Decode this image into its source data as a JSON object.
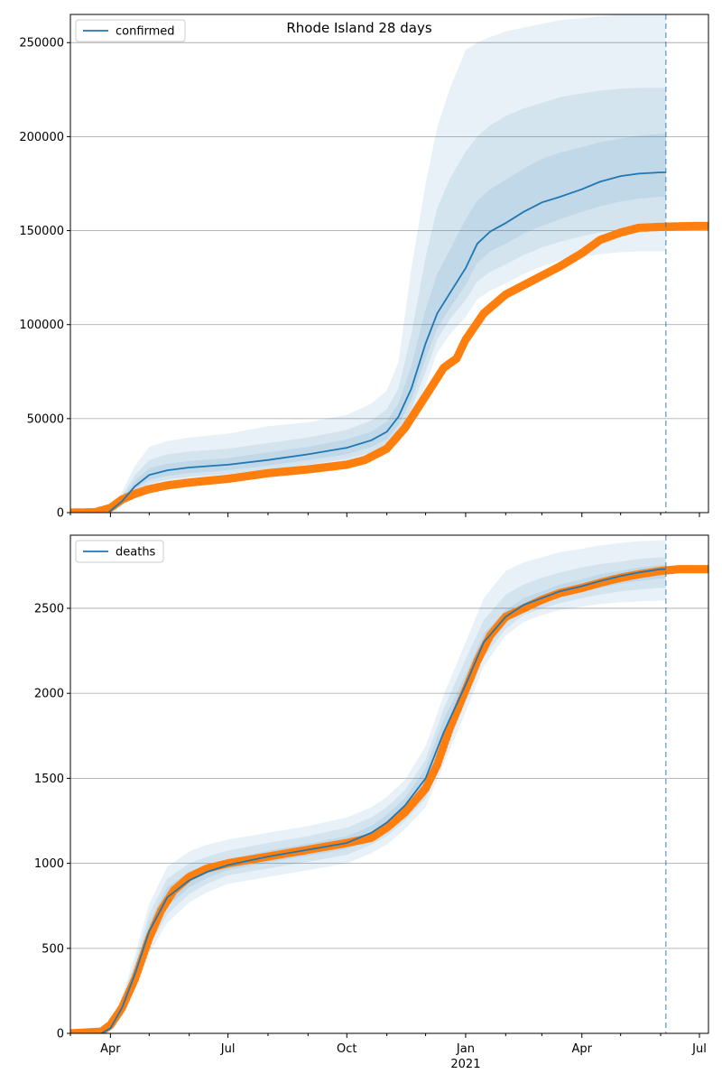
{
  "title": "Rhode Island 28 days",
  "colors": {
    "model": "#1f77b4",
    "observed": "#ff7f0e",
    "band": "#1f77b4",
    "grid": "#b0b0b0",
    "axis": "#000000"
  },
  "chart_data": [
    {
      "type": "line",
      "name": "confirmed-panel",
      "legend": "confirmed",
      "legend_position": "top-left",
      "grid": "horizontal",
      "ylim": [
        0,
        265000
      ],
      "yticks": [
        0,
        50000,
        100000,
        150000,
        200000,
        250000
      ],
      "ytick_labels": [
        "0",
        "50000",
        "100000",
        "150000",
        "200000",
        "250000"
      ],
      "forecast_line_x": "2021-06-05",
      "model": {
        "x": [
          "2020-03-31",
          "2020-04-10",
          "2020-04-20",
          "2020-05-01",
          "2020-05-15",
          "2020-06-01",
          "2020-07-01",
          "2020-08-01",
          "2020-09-01",
          "2020-10-01",
          "2020-10-20",
          "2020-11-01",
          "2020-11-10",
          "2020-11-20",
          "2020-12-01",
          "2020-12-10",
          "2020-12-20",
          "2021-01-01",
          "2021-01-10",
          "2021-01-20",
          "2021-02-01",
          "2021-02-15",
          "2021-03-01",
          "2021-03-15",
          "2021-04-01",
          "2021-04-15",
          "2021-05-01",
          "2021-05-15",
          "2021-06-01",
          "2021-06-05"
        ],
        "y": [
          500,
          6000,
          14000,
          20000,
          22500,
          24000,
          25500,
          28000,
          31000,
          34500,
          38500,
          43000,
          51000,
          66000,
          90000,
          106000,
          117000,
          130000,
          143000,
          149500,
          154000,
          160000,
          165000,
          168000,
          172000,
          176000,
          179000,
          180300,
          181000,
          181000
        ]
      },
      "bands": [
        {
          "level": "outer",
          "lower": [
            0,
            4000,
            9500,
            13000,
            15000,
            16500,
            18000,
            20500,
            23000,
            26000,
            29500,
            33000,
            40000,
            50000,
            68000,
            85000,
            95000,
            104000,
            113500,
            118000,
            122000,
            127000,
            131000,
            134000,
            136000,
            137500,
            138500,
            139000,
            139000,
            139000
          ],
          "upper": [
            0,
            11000,
            25000,
            35000,
            38000,
            40000,
            42000,
            46000,
            48000,
            52000,
            58000,
            65000,
            80000,
            130000,
            175000,
            205000,
            226000,
            246000,
            250000,
            253000,
            256000,
            258000,
            260000,
            262000,
            263000,
            264000,
            265000,
            265000,
            265000,
            265000
          ]
        },
        {
          "level": "middle",
          "lower": [
            0,
            4500,
            11000,
            15500,
            17500,
            19000,
            20500,
            23000,
            25500,
            28500,
            32000,
            36000,
            43000,
            55000,
            75000,
            92000,
            103000,
            113000,
            123000,
            128000,
            132000,
            137000,
            141000,
            144000,
            147000,
            149000,
            150500,
            151500,
            152000,
            152000
          ],
          "upper": [
            0,
            9000,
            20000,
            28000,
            31000,
            32500,
            34000,
            37000,
            40000,
            44000,
            49000,
            55000,
            66000,
            95000,
            136000,
            162000,
            178000,
            192000,
            200000,
            206000,
            211000,
            215000,
            218000,
            221000,
            223000,
            224500,
            225500,
            226000,
            226000,
            226000
          ]
        },
        {
          "level": "inner",
          "lower": [
            0,
            5200,
            12500,
            17500,
            19500,
            21000,
            22500,
            25000,
            28000,
            31000,
            35000,
            39000,
            46500,
            60000,
            82000,
            98000,
            109000,
            121000,
            133000,
            139000,
            143000,
            148500,
            152500,
            156000,
            160000,
            163000,
            165500,
            167000,
            168000,
            168000
          ],
          "upper": [
            0,
            7500,
            17000,
            23500,
            26000,
            27500,
            29000,
            32000,
            35000,
            39000,
            43000,
            48500,
            58000,
            78000,
            108000,
            127000,
            140000,
            156000,
            166000,
            172000,
            177000,
            183000,
            188000,
            191500,
            194500,
            197000,
            199000,
            200500,
            201500,
            201500
          ]
        }
      ],
      "observed": {
        "x": [
          "2020-03-01",
          "2020-03-20",
          "2020-04-01",
          "2020-04-10",
          "2020-04-20",
          "2020-05-01",
          "2020-05-15",
          "2020-06-01",
          "2020-07-01",
          "2020-08-01",
          "2020-09-01",
          "2020-10-01",
          "2020-10-15",
          "2020-11-01",
          "2020-11-15",
          "2020-12-01",
          "2020-12-15",
          "2020-12-25",
          "2021-01-01",
          "2021-01-15",
          "2021-02-01",
          "2021-02-15",
          "2021-03-01",
          "2021-03-15",
          "2021-04-01",
          "2021-04-15",
          "2021-05-01",
          "2021-05-15",
          "2021-06-01",
          "2021-06-15",
          "2021-07-01",
          "2021-07-08"
        ],
        "y": [
          0,
          200,
          2500,
          7000,
          10000,
          12500,
          14500,
          16000,
          18000,
          21000,
          23000,
          25500,
          28000,
          34000,
          45000,
          62000,
          77000,
          82000,
          92000,
          106000,
          116000,
          121000,
          126000,
          131000,
          138000,
          145000,
          149000,
          151500,
          152000,
          152300,
          152500,
          152500
        ]
      }
    },
    {
      "type": "line",
      "name": "deaths-panel",
      "legend": "deaths",
      "legend_position": "top-left",
      "grid": "horizontal",
      "ylim": [
        0,
        2930
      ],
      "yticks": [
        0,
        500,
        1000,
        1500,
        2000,
        2500
      ],
      "ytick_labels": [
        "0",
        "500",
        "1000",
        "1500",
        "2000",
        "2500"
      ],
      "xlim": [
        "2020-03-01",
        "2021-07-08"
      ],
      "xticks": [
        "2020-04-01",
        "2020-07-01",
        "2020-10-01",
        "2021-01-01",
        "2021-04-01",
        "2021-07-01"
      ],
      "xtick_labels": [
        "Apr",
        "Jul",
        "Oct",
        "Jan",
        "Apr",
        "Jul"
      ],
      "xtick_sublabel": {
        "at": "2021-01-01",
        "text": "2021"
      },
      "forecast_line_x": "2021-06-05",
      "model": {
        "x": [
          "2020-03-25",
          "2020-04-01",
          "2020-04-10",
          "2020-04-20",
          "2020-05-01",
          "2020-05-15",
          "2020-06-01",
          "2020-06-15",
          "2020-07-01",
          "2020-08-01",
          "2020-09-01",
          "2020-10-01",
          "2020-10-20",
          "2020-11-01",
          "2020-11-15",
          "2020-12-01",
          "2020-12-15",
          "2021-01-01",
          "2021-01-15",
          "2021-02-01",
          "2021-02-15",
          "2021-03-01",
          "2021-03-15",
          "2021-04-01",
          "2021-04-15",
          "2021-05-01",
          "2021-05-15",
          "2021-06-01",
          "2021-06-05"
        ],
        "y": [
          0,
          30,
          150,
          350,
          600,
          800,
          900,
          950,
          990,
          1040,
          1080,
          1120,
          1180,
          1240,
          1340,
          1500,
          1770,
          2050,
          2300,
          2450,
          2520,
          2560,
          2600,
          2630,
          2660,
          2690,
          2710,
          2730,
          2730
        ]
      },
      "bands": [
        {
          "level": "outer",
          "lower": [
            0,
            10,
            100,
            260,
            470,
            650,
            770,
            830,
            880,
            920,
            960,
            1000,
            1060,
            1110,
            1200,
            1330,
            1580,
            1890,
            2160,
            2340,
            2420,
            2460,
            2490,
            2510,
            2525,
            2535,
            2540,
            2545,
            2545
          ],
          "upper": [
            0,
            60,
            220,
            460,
            760,
            980,
            1070,
            1110,
            1140,
            1180,
            1220,
            1270,
            1330,
            1390,
            1490,
            1690,
            1990,
            2300,
            2560,
            2720,
            2770,
            2800,
            2830,
            2850,
            2870,
            2885,
            2895,
            2900,
            2900
          ]
        },
        {
          "level": "middle",
          "lower": [
            0,
            15,
            115,
            290,
            510,
            700,
            820,
            880,
            930,
            970,
            1010,
            1050,
            1110,
            1160,
            1250,
            1380,
            1640,
            1950,
            2210,
            2380,
            2460,
            2500,
            2530,
            2560,
            2580,
            2600,
            2610,
            2620,
            2620
          ],
          "upper": [
            0,
            50,
            195,
            420,
            700,
            910,
            1000,
            1040,
            1075,
            1120,
            1160,
            1210,
            1270,
            1330,
            1430,
            1610,
            1910,
            2200,
            2430,
            2580,
            2640,
            2680,
            2710,
            2740,
            2760,
            2775,
            2790,
            2800,
            2800
          ]
        },
        {
          "level": "inner",
          "lower": [
            0,
            20,
            130,
            315,
            550,
            745,
            860,
            915,
            960,
            1005,
            1045,
            1085,
            1145,
            1200,
            1295,
            1440,
            1700,
            2000,
            2255,
            2415,
            2490,
            2530,
            2565,
            2595,
            2620,
            2645,
            2660,
            2675,
            2675
          ],
          "upper": [
            0,
            40,
            170,
            385,
            650,
            860,
            950,
            990,
            1025,
            1075,
            1115,
            1160,
            1220,
            1285,
            1385,
            1560,
            1845,
            2110,
            2350,
            2490,
            2560,
            2600,
            2640,
            2670,
            2700,
            2720,
            2740,
            2755,
            2755
          ]
        }
      ],
      "observed": {
        "x": [
          "2020-03-01",
          "2020-03-25",
          "2020-04-01",
          "2020-04-10",
          "2020-04-20",
          "2020-05-01",
          "2020-05-10",
          "2020-05-20",
          "2020-06-01",
          "2020-06-15",
          "2020-07-01",
          "2020-08-01",
          "2020-09-01",
          "2020-10-01",
          "2020-10-20",
          "2020-11-01",
          "2020-11-15",
          "2020-12-01",
          "2020-12-10",
          "2020-12-20",
          "2021-01-01",
          "2021-01-10",
          "2021-01-20",
          "2021-02-01",
          "2021-02-15",
          "2021-03-01",
          "2021-03-15",
          "2021-04-01",
          "2021-04-15",
          "2021-05-01",
          "2021-05-15",
          "2021-06-01",
          "2021-06-15",
          "2021-07-01",
          "2021-07-08"
        ],
        "y": [
          0,
          10,
          50,
          150,
          320,
          560,
          720,
          840,
          920,
          970,
          1000,
          1040,
          1080,
          1120,
          1150,
          1210,
          1300,
          1440,
          1580,
          1800,
          2020,
          2190,
          2340,
          2450,
          2500,
          2550,
          2590,
          2620,
          2650,
          2680,
          2700,
          2720,
          2730,
          2730,
          2730
        ]
      }
    }
  ]
}
